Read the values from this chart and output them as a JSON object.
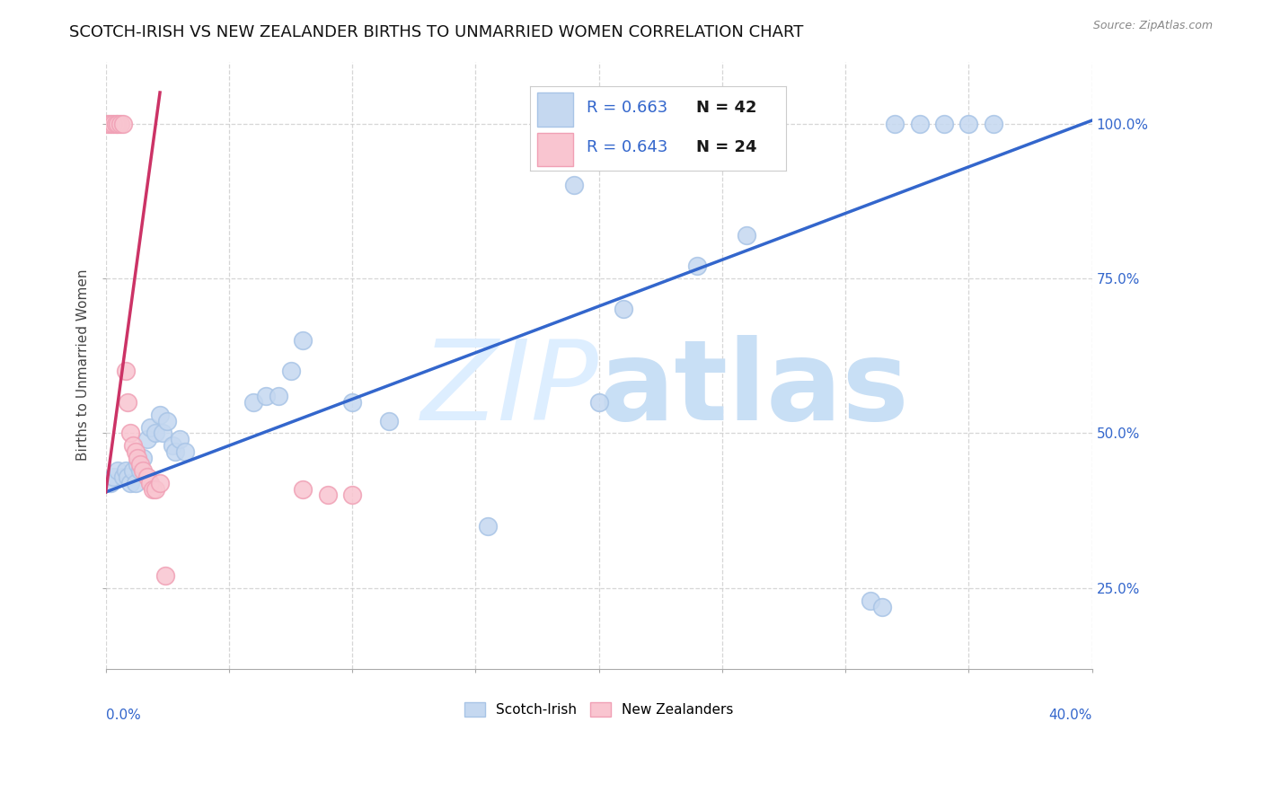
{
  "title": "SCOTCH-IRISH VS NEW ZEALANDER BIRTHS TO UNMARRIED WOMEN CORRELATION CHART",
  "source": "Source: ZipAtlas.com",
  "ylabel": "Births to Unmarried Women",
  "ytick_vals": [
    0.25,
    0.5,
    0.75,
    1.0
  ],
  "ytick_labels": [
    "25.0%",
    "50.0%",
    "75.0%",
    "100.0%"
  ],
  "xlim": [
    0.0,
    0.4
  ],
  "ylim": [
    0.12,
    1.1
  ],
  "blue_label": "Scotch-Irish",
  "pink_label": "New Zealanders",
  "blue_R": "R = 0.663",
  "blue_N": "N = 42",
  "pink_R": "R = 0.643",
  "pink_N": "N = 24",
  "blue_dot_color": "#c5d8f0",
  "blue_edge_color": "#a8c4e6",
  "pink_dot_color": "#f9c5d0",
  "pink_edge_color": "#f0a0b5",
  "blue_line_color": "#3366cc",
  "pink_line_color": "#cc3366",
  "watermark_color": "#ddeeff",
  "blue_x": [
    0.002,
    0.003,
    0.005,
    0.007,
    0.008,
    0.009,
    0.01,
    0.011,
    0.012,
    0.013,
    0.014,
    0.015,
    0.017,
    0.018,
    0.02,
    0.022,
    0.023,
    0.025,
    0.027,
    0.028,
    0.03,
    0.032,
    0.06,
    0.065,
    0.07,
    0.075,
    0.08,
    0.1,
    0.115,
    0.155,
    0.19,
    0.2,
    0.21,
    0.24,
    0.26,
    0.31,
    0.315,
    0.32,
    0.33,
    0.34,
    0.35,
    0.36
  ],
  "blue_y": [
    0.42,
    0.43,
    0.44,
    0.43,
    0.44,
    0.43,
    0.42,
    0.44,
    0.42,
    0.45,
    0.44,
    0.46,
    0.49,
    0.51,
    0.5,
    0.53,
    0.5,
    0.52,
    0.48,
    0.47,
    0.49,
    0.47,
    0.55,
    0.56,
    0.56,
    0.6,
    0.65,
    0.55,
    0.52,
    0.35,
    0.9,
    0.55,
    0.7,
    0.77,
    0.82,
    0.23,
    0.22,
    1.0,
    1.0,
    1.0,
    1.0,
    1.0
  ],
  "pink_x": [
    0.001,
    0.002,
    0.003,
    0.004,
    0.005,
    0.006,
    0.007,
    0.008,
    0.009,
    0.01,
    0.011,
    0.012,
    0.013,
    0.014,
    0.015,
    0.017,
    0.018,
    0.019,
    0.02,
    0.022,
    0.024,
    0.08,
    0.09,
    0.1
  ],
  "pink_y": [
    1.0,
    1.0,
    1.0,
    1.0,
    1.0,
    1.0,
    1.0,
    0.6,
    0.55,
    0.5,
    0.48,
    0.47,
    0.46,
    0.45,
    0.44,
    0.43,
    0.42,
    0.41,
    0.41,
    0.42,
    0.27,
    0.41,
    0.4,
    0.4
  ],
  "blue_line_x": [
    0.0,
    0.4
  ],
  "blue_line_y": [
    0.405,
    1.005
  ],
  "pink_line_x": [
    0.0,
    0.022
  ],
  "pink_line_y": [
    0.405,
    1.05
  ]
}
